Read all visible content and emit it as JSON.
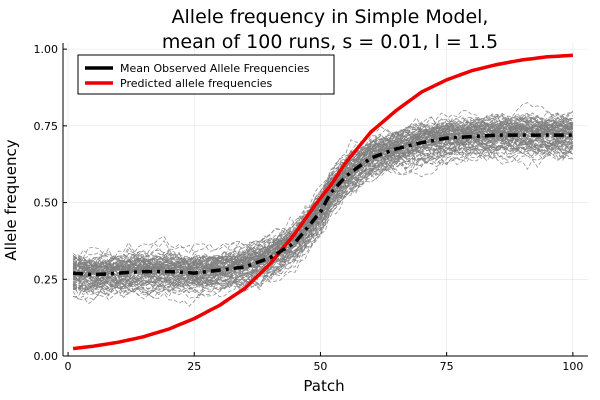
{
  "chart_data": {
    "type": "line",
    "title": [
      "Allele frequency in Simple Model,",
      "mean of 100 runs, s = 0.01, l = 1.5"
    ],
    "xlabel": "Patch",
    "ylabel": "Allele frequency",
    "xlim": [
      -1,
      103
    ],
    "ylim": [
      0,
      1.02
    ],
    "xticks": [
      0,
      25,
      50,
      75,
      100
    ],
    "xtick_labels": [
      "0",
      "25",
      "50",
      "75",
      "100"
    ],
    "yticks": [
      0.0,
      0.25,
      0.5,
      0.75,
      1.0
    ],
    "ytick_labels": [
      "0.00",
      "0.25",
      "0.50",
      "0.75",
      "1.00"
    ],
    "grid": true,
    "legend_position": "top-left",
    "runs": {
      "count": 100,
      "color": "#808080",
      "style": "dashed",
      "description_range": "individual runs spread roughly ±0.1 around the mean"
    },
    "series": [
      {
        "name": "Mean Observed Allele Frequencies",
        "color": "#000000",
        "style": "dash-dot",
        "x": [
          1,
          5,
          10,
          15,
          20,
          25,
          30,
          35,
          40,
          45,
          50,
          52,
          55,
          57,
          60,
          65,
          70,
          75,
          80,
          85,
          90,
          95,
          100
        ],
        "y": [
          0.27,
          0.265,
          0.27,
          0.275,
          0.275,
          0.27,
          0.28,
          0.29,
          0.32,
          0.37,
          0.47,
          0.53,
          0.585,
          0.61,
          0.645,
          0.675,
          0.695,
          0.71,
          0.715,
          0.72,
          0.72,
          0.72,
          0.72
        ]
      },
      {
        "name": "Predicted allele frequencies",
        "color": "#ee0000",
        "style": "solid",
        "x": [
          1,
          5,
          10,
          15,
          20,
          25,
          30,
          35,
          40,
          42,
          45,
          48,
          50,
          52,
          55,
          58,
          60,
          65,
          70,
          75,
          80,
          85,
          90,
          95,
          100
        ],
        "y": [
          0.024,
          0.032,
          0.045,
          0.063,
          0.088,
          0.122,
          0.165,
          0.22,
          0.3,
          0.34,
          0.4,
          0.47,
          0.515,
          0.555,
          0.63,
          0.69,
          0.73,
          0.8,
          0.86,
          0.9,
          0.93,
          0.95,
          0.965,
          0.975,
          0.98
        ]
      }
    ]
  }
}
